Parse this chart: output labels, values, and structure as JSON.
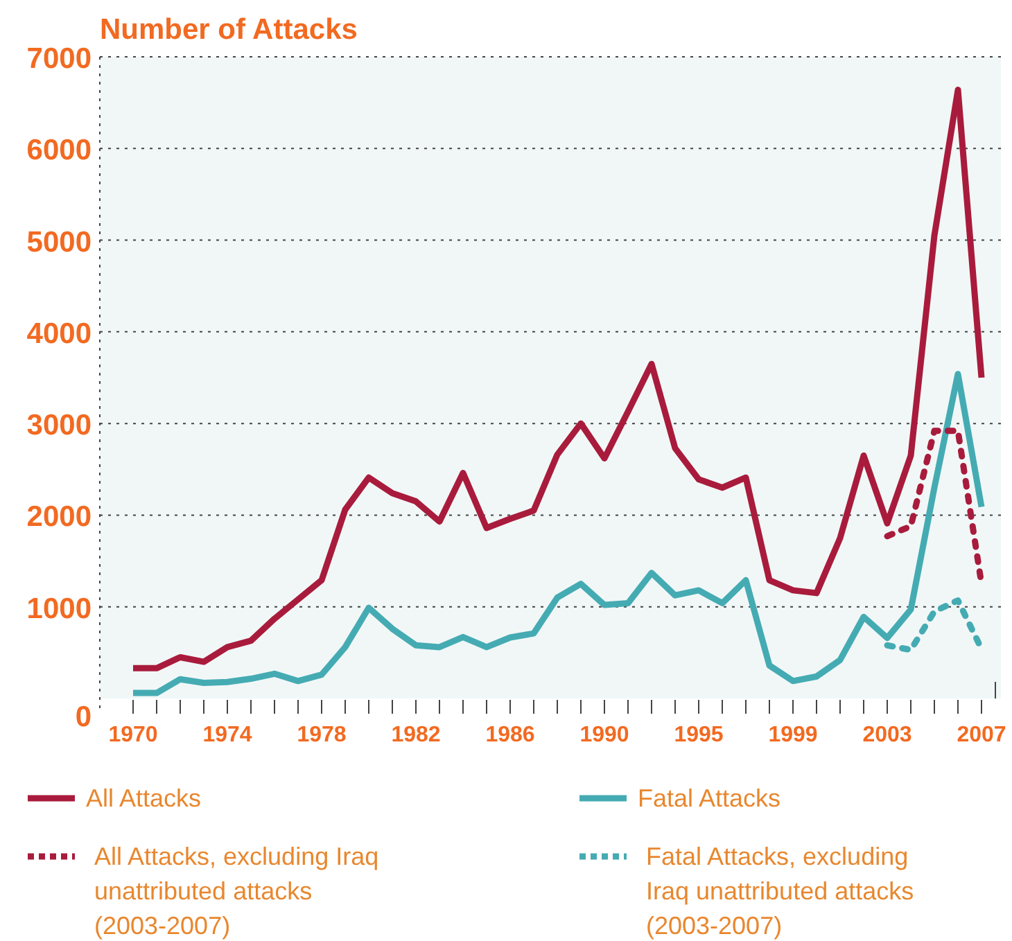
{
  "chart_data": {
    "type": "line",
    "ylabel": "Number of Attacks",
    "categories": [
      "1970",
      null,
      null,
      null,
      "1974",
      null,
      null,
      null,
      "1978",
      null,
      null,
      null,
      "1982",
      null,
      null,
      null,
      "1986",
      null,
      null,
      null,
      "1990",
      null,
      null,
      null,
      "1995",
      null,
      null,
      null,
      "1999",
      null,
      null,
      null,
      "2003",
      null,
      null,
      null,
      "2007"
    ],
    "series": [
      {
        "name": "All Attacks",
        "color": "#a91b3c",
        "line_style": "solid",
        "values": [
          330,
          330,
          450,
          400,
          560,
          630,
          870,
          1080,
          1290,
          2060,
          2410,
          2240,
          2150,
          1930,
          2460,
          1860,
          1960,
          2050,
          2660,
          3000,
          2620,
          3130,
          3650,
          2730,
          2390,
          2300,
          2410,
          1290,
          1180,
          1150,
          1750,
          2650,
          1910,
          2650,
          5050,
          6640,
          3500
        ]
      },
      {
        "name": "Fatal Attacks",
        "color": "#45abb3",
        "line_style": "solid",
        "values": [
          60,
          60,
          210,
          170,
          180,
          215,
          270,
          190,
          260,
          560,
          990,
          760,
          580,
          560,
          670,
          560,
          665,
          710,
          1100,
          1250,
          1020,
          1040,
          1370,
          1125,
          1180,
          1040,
          1290,
          360,
          190,
          240,
          420,
          890,
          660,
          970,
          2300,
          3540,
          2090
        ]
      },
      {
        "name": "All Attacks, excluding Iraq unattributed attacks (2003-2007)",
        "color": "#a91b3c",
        "line_style": "dotted",
        "values": [
          null,
          null,
          null,
          null,
          null,
          null,
          null,
          null,
          null,
          null,
          null,
          null,
          null,
          null,
          null,
          null,
          null,
          null,
          null,
          null,
          null,
          null,
          null,
          null,
          null,
          null,
          null,
          null,
          null,
          null,
          null,
          null,
          1770,
          1880,
          2920,
          2920,
          1250
        ]
      },
      {
        "name": "Fatal Attacks, excluding Iraq unattributed attacks (2003-2007)",
        "color": "#45abb3",
        "line_style": "dotted",
        "values": [
          null,
          null,
          null,
          null,
          null,
          null,
          null,
          null,
          null,
          null,
          null,
          null,
          null,
          null,
          null,
          null,
          null,
          null,
          null,
          null,
          null,
          null,
          null,
          null,
          null,
          null,
          null,
          null,
          null,
          null,
          null,
          null,
          580,
          530,
          950,
          1070,
          540
        ]
      }
    ],
    "ylim": [
      0,
      7000
    ],
    "yticks": [
      0,
      1000,
      2000,
      3000,
      4000,
      5000,
      6000,
      7000
    ],
    "grid": "y",
    "legend": "bottom"
  }
}
